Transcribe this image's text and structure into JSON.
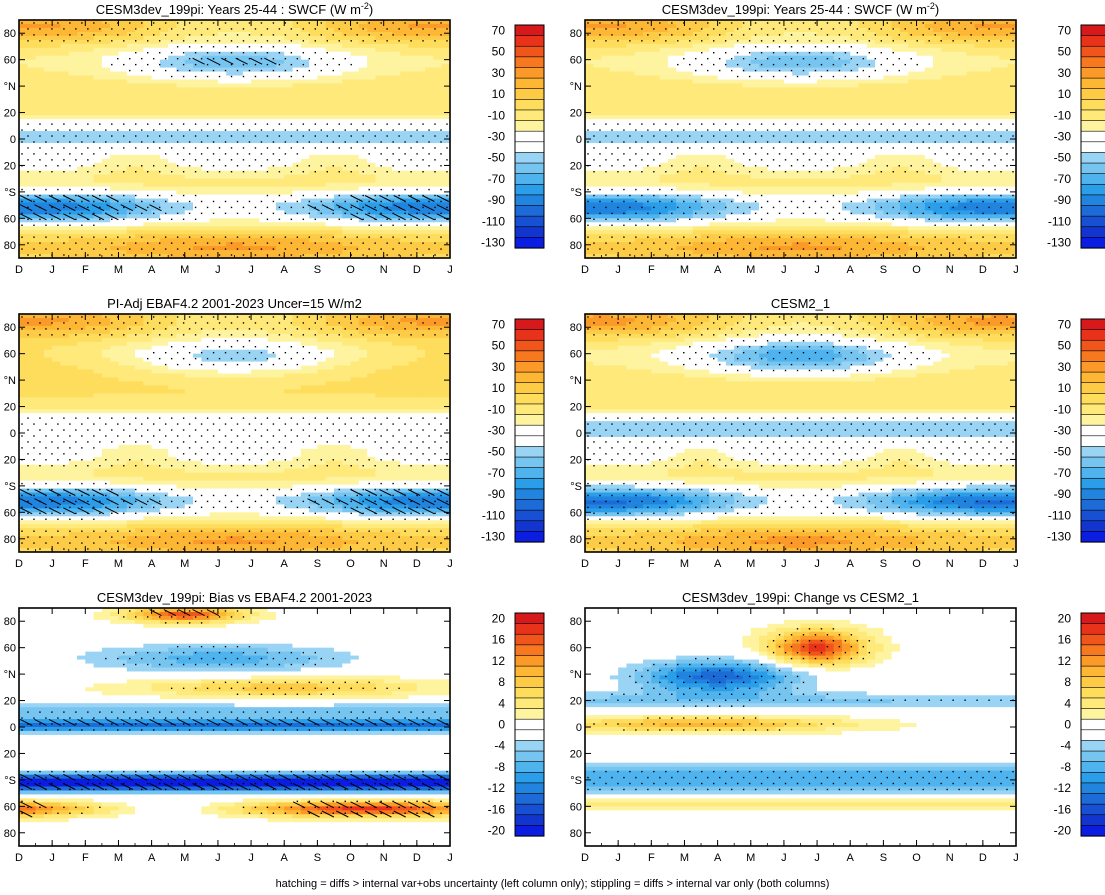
{
  "chart_data": [
    {
      "type": "heatmap",
      "title": "CESM3dev_199pi: Years 25-44 : SWCF (W m",
      "title_sup": "-2",
      "title_end": ")",
      "field": "sw",
      "colorbar": "swcf",
      "hatch": true
    },
    {
      "type": "heatmap",
      "title": "CESM3dev_199pi: Years 25-44 : SWCF (W m",
      "title_sup": "-2",
      "title_end": ")",
      "field": "sw",
      "colorbar": "swcf",
      "hatch": false
    },
    {
      "type": "heatmap",
      "title": "PI-Adj EBAF4.2 2001-2023 Uncer=15 W/m2",
      "title_sup": "",
      "title_end": "",
      "field": "sw_obs",
      "colorbar": "swcf",
      "hatch": true
    },
    {
      "type": "heatmap",
      "title": "CESM2_1",
      "title_sup": "",
      "title_end": "",
      "field": "sw2",
      "colorbar": "swcf",
      "hatch": false
    },
    {
      "type": "heatmap",
      "title": "CESM3dev_199pi: Bias vs EBAF4.2 2001-2023",
      "title_sup": "",
      "title_end": "",
      "field": "bias",
      "colorbar": "diff",
      "hatch": true
    },
    {
      "type": "heatmap",
      "title": "CESM3dev_199pi: Change vs CESM2_1",
      "title_sup": "",
      "title_end": "",
      "field": "change",
      "colorbar": "diff",
      "hatch": false
    }
  ],
  "axes": {
    "x_ticks": [
      "D",
      "J",
      "F",
      "M",
      "A",
      "M",
      "J",
      "J",
      "A",
      "S",
      "O",
      "N",
      "D",
      "J"
    ],
    "y_ticks": [
      "80",
      "60",
      "°N",
      "20",
      "0",
      "20",
      "°S",
      "60",
      "80"
    ],
    "y_values": [
      80,
      60,
      40,
      20,
      0,
      -20,
      -40,
      -60,
      -80
    ],
    "ylim": [
      -90,
      90
    ],
    "xlim": [
      0,
      13
    ]
  },
  "colorbars": {
    "swcf": {
      "labels": [
        "70",
        "50",
        "30",
        "10",
        "-10",
        "-30",
        "-50",
        "-70",
        "-90",
        "-110",
        "-130"
      ],
      "levels": [
        70,
        60,
        50,
        40,
        30,
        20,
        10,
        0,
        -10,
        -20,
        -30,
        -40,
        -50,
        -60,
        -70,
        -80,
        -90,
        -100,
        -110,
        -120,
        -130
      ],
      "colors": [
        "#d7191c",
        "#e8331a",
        "#f0551b",
        "#f7781e",
        "#fb9a28",
        "#fdb735",
        "#fdcb46",
        "#fedc5c",
        "#fee97a",
        "#fef39e",
        "#ffffff",
        "#ffffff",
        "#9ad4f4",
        "#76c5f1",
        "#4fb3ee",
        "#2b9eea",
        "#2184df",
        "#1c6bd6",
        "#1750d2",
        "#1235d0",
        "#0a1de0"
      ]
    },
    "diff": {
      "labels": [
        "20",
        "16",
        "12",
        "8",
        "4",
        "0",
        "-4",
        "-8",
        "-12",
        "-16",
        "-20"
      ],
      "levels": [
        20,
        18,
        16,
        14,
        12,
        10,
        8,
        6,
        4,
        2,
        0,
        -2,
        -4,
        -6,
        -8,
        -10,
        -12,
        -14,
        -16,
        -18,
        -20
      ],
      "colors": [
        "#d7191c",
        "#e8331a",
        "#f0551b",
        "#f7781e",
        "#fb9a28",
        "#fdb735",
        "#fdcb46",
        "#fedc5c",
        "#fee97a",
        "#fef39e",
        "#ffffff",
        "#ffffff",
        "#9ad4f4",
        "#76c5f1",
        "#4fb3ee",
        "#2b9eea",
        "#2184df",
        "#1c6bd6",
        "#1750d2",
        "#1235d0",
        "#0a1de0"
      ]
    }
  },
  "footnote": "hatching = diffs > internal var+obs uncertainty (left column only); stippling = diffs > internal var only (both columns)"
}
